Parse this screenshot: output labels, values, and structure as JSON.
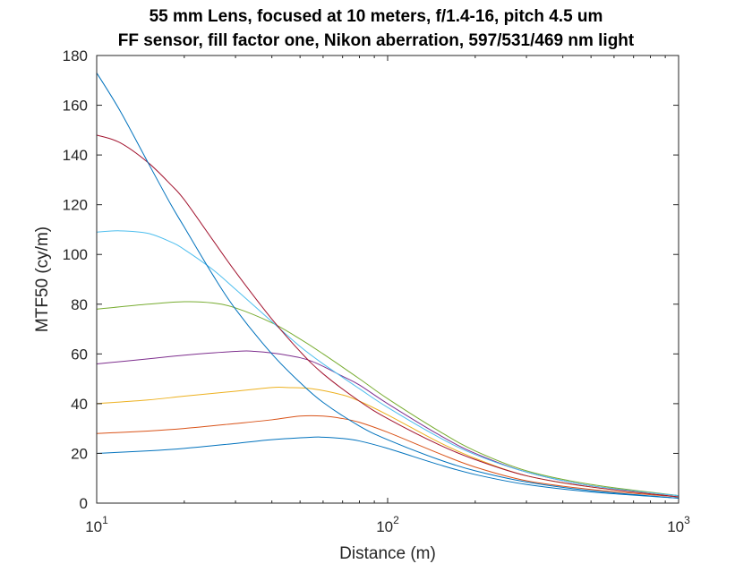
{
  "chart_data": {
    "type": "line",
    "title": [
      "55 mm Lens, focused at 10 meters, f/1.4-16, pitch 4.5 um",
      "FF sensor, fill factor one, Nikon aberration, 597/531/469 nm light"
    ],
    "xlabel": "Distance (m)",
    "ylabel": "MTF50 (cy/m)",
    "xscale": "log",
    "xlim": [
      10,
      1000
    ],
    "ylim": [
      0,
      180
    ],
    "yticks": [
      0,
      20,
      40,
      60,
      80,
      100,
      120,
      140,
      160,
      180
    ],
    "xticks": [
      {
        "value": 10,
        "base": "10",
        "exp": "1"
      },
      {
        "value": 100,
        "base": "10",
        "exp": "2"
      },
      {
        "value": 1000,
        "base": "10",
        "exp": "3"
      }
    ],
    "grid": false,
    "legend": "none",
    "series": [
      {
        "color": "#0072BD",
        "points": [
          [
            10,
            20
          ],
          [
            15,
            21
          ],
          [
            20,
            22
          ],
          [
            30,
            24
          ],
          [
            40,
            25.5
          ],
          [
            55,
            26.5
          ],
          [
            60,
            26.5
          ],
          [
            70,
            26
          ],
          [
            80,
            25
          ],
          [
            100,
            22
          ],
          [
            150,
            15.5
          ],
          [
            200,
            11.5
          ],
          [
            300,
            7.5
          ],
          [
            500,
            4.5
          ],
          [
            1000,
            2
          ]
        ]
      },
      {
        "color": "#D95319",
        "points": [
          [
            10,
            28
          ],
          [
            15,
            29
          ],
          [
            20,
            30
          ],
          [
            30,
            32
          ],
          [
            40,
            33.5
          ],
          [
            50,
            35
          ],
          [
            60,
            35
          ],
          [
            70,
            34
          ],
          [
            80,
            32.5
          ],
          [
            100,
            28.5
          ],
          [
            150,
            20
          ],
          [
            200,
            14.5
          ],
          [
            300,
            9
          ],
          [
            500,
            5.5
          ],
          [
            1000,
            2.5
          ]
        ]
      },
      {
        "color": "#EDB120",
        "points": [
          [
            10,
            40
          ],
          [
            15,
            41.5
          ],
          [
            20,
            43
          ],
          [
            30,
            45
          ],
          [
            40,
            46.5
          ],
          [
            45,
            46.5
          ],
          [
            55,
            46
          ],
          [
            70,
            43.5
          ],
          [
            80,
            41
          ],
          [
            100,
            35.5
          ],
          [
            150,
            24.5
          ],
          [
            200,
            18
          ],
          [
            300,
            11
          ],
          [
            500,
            6.5
          ],
          [
            1000,
            2.5
          ]
        ]
      },
      {
        "color": "#7E2F8E",
        "points": [
          [
            10,
            56
          ],
          [
            15,
            58
          ],
          [
            20,
            59.5
          ],
          [
            30,
            61
          ],
          [
            35,
            61
          ],
          [
            45,
            59.5
          ],
          [
            55,
            57
          ],
          [
            70,
            51
          ],
          [
            80,
            47.5
          ],
          [
            100,
            40
          ],
          [
            150,
            27.5
          ],
          [
            200,
            20
          ],
          [
            300,
            12.5
          ],
          [
            500,
            7
          ],
          [
            1000,
            3
          ]
        ]
      },
      {
        "color": "#77AC30",
        "points": [
          [
            10,
            78
          ],
          [
            15,
            80
          ],
          [
            20,
            81
          ],
          [
            25,
            80.5
          ],
          [
            30,
            78.5
          ],
          [
            40,
            72.5
          ],
          [
            50,
            66
          ],
          [
            60,
            60
          ],
          [
            80,
            50
          ],
          [
            100,
            42
          ],
          [
            150,
            29
          ],
          [
            200,
            21
          ],
          [
            300,
            13
          ],
          [
            500,
            7.5
          ],
          [
            1000,
            3
          ]
        ]
      },
      {
        "color": "#4DBEEE",
        "points": [
          [
            10,
            109
          ],
          [
            12,
            109.5
          ],
          [
            15,
            108.5
          ],
          [
            18,
            105
          ],
          [
            20,
            102
          ],
          [
            25,
            94
          ],
          [
            30,
            86
          ],
          [
            40,
            73
          ],
          [
            50,
            63
          ],
          [
            60,
            56
          ],
          [
            80,
            46
          ],
          [
            100,
            38.5
          ],
          [
            150,
            26.5
          ],
          [
            200,
            19.5
          ],
          [
            300,
            12.5
          ],
          [
            500,
            7
          ],
          [
            1000,
            3
          ]
        ]
      },
      {
        "color": "#A2142F",
        "points": [
          [
            10,
            148
          ],
          [
            12,
            145
          ],
          [
            15,
            137
          ],
          [
            18,
            128
          ],
          [
            20,
            122
          ],
          [
            25,
            106
          ],
          [
            30,
            93
          ],
          [
            40,
            74
          ],
          [
            50,
            61
          ],
          [
            60,
            52
          ],
          [
            80,
            41
          ],
          [
            100,
            34
          ],
          [
            150,
            23.5
          ],
          [
            200,
            17.5
          ],
          [
            300,
            11
          ],
          [
            500,
            6.5
          ],
          [
            1000,
            2.5
          ]
        ]
      },
      {
        "color": "#0072BD",
        "points": [
          [
            10,
            173
          ],
          [
            12,
            158
          ],
          [
            15,
            137
          ],
          [
            18,
            120
          ],
          [
            20,
            111
          ],
          [
            25,
            92
          ],
          [
            30,
            78
          ],
          [
            40,
            60
          ],
          [
            50,
            48.5
          ],
          [
            60,
            40.5
          ],
          [
            80,
            31
          ],
          [
            100,
            25.5
          ],
          [
            150,
            17.5
          ],
          [
            200,
            13
          ],
          [
            300,
            8.5
          ],
          [
            500,
            5
          ],
          [
            1000,
            2
          ]
        ]
      }
    ]
  }
}
